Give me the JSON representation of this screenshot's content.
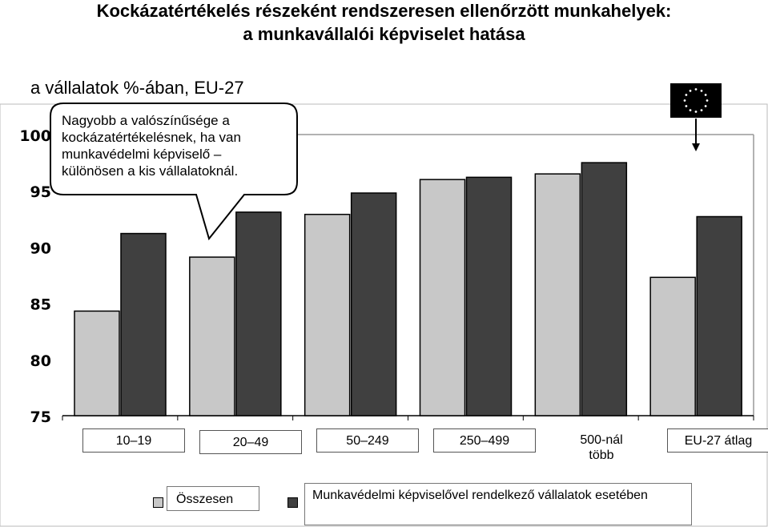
{
  "header": {
    "title_line1": "Kockázatértékelés részeként rendszeresen ellenőrzött munkahelyek:",
    "title_line2": "a munkavállalói képviselet hatása",
    "subtitle": "a vállalatok %-ában, EU-27"
  },
  "callout": {
    "line1": "Nagyobb a valószínűsége a",
    "line2": "kockázatértékelésnek, ha van",
    "line3": "munkavédelmi  képviselő –",
    "line4": "különösen a kis vállalatoknál."
  },
  "colors": {
    "total": "#c8c8c8",
    "with_rep": "#404040",
    "bar_border": "#000000",
    "grid_border": "#999999"
  },
  "chart_data": {
    "type": "bar",
    "title": "Kockázatértékelés részeként rendszeresen ellenőrzött munkahelyek: a munkavállalói képviselet hatása",
    "subtitle": "a vállalatok %-ában, EU-27",
    "categories": [
      "10–19",
      "20–49",
      "50–249",
      "250–499",
      "500-nál több",
      "EU-27 átlag"
    ],
    "category_lines": [
      [
        "10–19"
      ],
      [
        "20–49"
      ],
      [
        "50–249"
      ],
      [
        "250–499"
      ],
      [
        "500-nál",
        "több"
      ],
      [
        "EU-27 átlag"
      ]
    ],
    "series": [
      {
        "name": "Összesen",
        "values": [
          84.3,
          89.1,
          92.9,
          96.0,
          96.5,
          87.3
        ]
      },
      {
        "name": "Munkavédelmi képviselővel rendelkező vállalatok esetében",
        "values": [
          91.2,
          93.1,
          94.8,
          96.2,
          97.5,
          92.7
        ]
      }
    ],
    "ylim": [
      75,
      100
    ],
    "yticks": [
      75,
      80,
      85,
      90,
      95,
      100
    ],
    "xlabel": "",
    "ylabel": "",
    "legend": "bottom",
    "grid": false
  }
}
